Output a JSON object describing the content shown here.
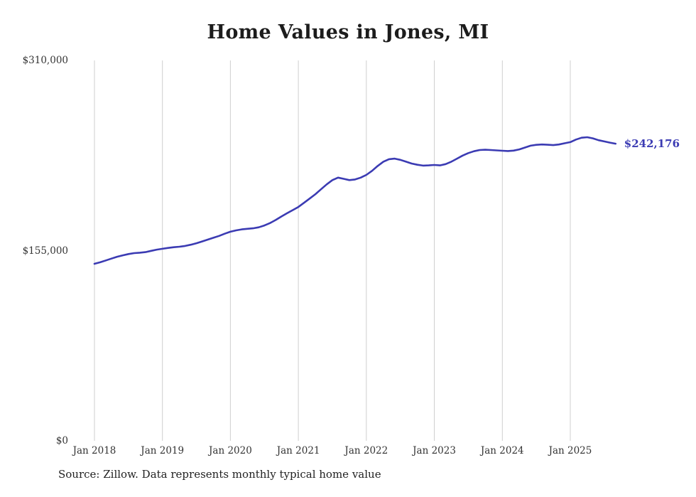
{
  "page": {
    "source_note": "Source: Zillow. Data represents monthly typical home value"
  },
  "chart_data": {
    "type": "line",
    "title": "Home Values in Jones, MI",
    "series_name": "Monthly typical home value (USD)",
    "unit": "USD",
    "grid": "vertical-only",
    "legend": "none",
    "ylim": [
      0,
      310000
    ],
    "line_color": "#3b3bb3",
    "grid_color": "#cfcfcf",
    "end_label": "$242,176",
    "latest_value": 242176,
    "y_ticks": [
      {
        "value": 0,
        "label": "$0"
      },
      {
        "value": 155000,
        "label": "$155,000"
      },
      {
        "value": 310000,
        "label": "$310,000"
      }
    ],
    "x_ticks": [
      {
        "index": 0,
        "label": "Jan 2018"
      },
      {
        "index": 12,
        "label": "Jan 2019"
      },
      {
        "index": 24,
        "label": "Jan 2020"
      },
      {
        "index": 36,
        "label": "Jan 2021"
      },
      {
        "index": 48,
        "label": "Jan 2022"
      },
      {
        "index": 60,
        "label": "Jan 2023"
      },
      {
        "index": 72,
        "label": "Jan 2024"
      },
      {
        "index": 84,
        "label": "Jan 2025"
      }
    ],
    "x": [
      "2018-01",
      "2018-02",
      "2018-03",
      "2018-04",
      "2018-05",
      "2018-06",
      "2018-07",
      "2018-08",
      "2018-09",
      "2018-10",
      "2018-11",
      "2018-12",
      "2019-01",
      "2019-02",
      "2019-03",
      "2019-04",
      "2019-05",
      "2019-06",
      "2019-07",
      "2019-08",
      "2019-09",
      "2019-10",
      "2019-11",
      "2019-12",
      "2020-01",
      "2020-02",
      "2020-03",
      "2020-04",
      "2020-05",
      "2020-06",
      "2020-07",
      "2020-08",
      "2020-09",
      "2020-10",
      "2020-11",
      "2020-12",
      "2021-01",
      "2021-02",
      "2021-03",
      "2021-04",
      "2021-05",
      "2021-06",
      "2021-07",
      "2021-08",
      "2021-09",
      "2021-10",
      "2021-11",
      "2021-12",
      "2022-01",
      "2022-02",
      "2022-03",
      "2022-04",
      "2022-05",
      "2022-06",
      "2022-07",
      "2022-08",
      "2022-09",
      "2022-10",
      "2022-11",
      "2022-12",
      "2023-01",
      "2023-02",
      "2023-03",
      "2023-04",
      "2023-05",
      "2023-06",
      "2023-07",
      "2023-08",
      "2023-09",
      "2023-10",
      "2023-11",
      "2023-12",
      "2024-01",
      "2024-02",
      "2024-03",
      "2024-04",
      "2024-05",
      "2024-06",
      "2024-07",
      "2024-08",
      "2024-09",
      "2024-10",
      "2024-11",
      "2024-12",
      "2025-01",
      "2025-02",
      "2025-03",
      "2025-04",
      "2025-05",
      "2025-06",
      "2025-07",
      "2025-08",
      "2025-09"
    ],
    "values": [
      144300,
      145500,
      147000,
      148500,
      150000,
      151200,
      152200,
      153000,
      153300,
      153800,
      154800,
      155800,
      156500,
      157200,
      157800,
      158200,
      158800,
      159800,
      161000,
      162500,
      164000,
      165500,
      167000,
      168800,
      170400,
      171500,
      172300,
      172800,
      173200,
      174000,
      175500,
      177500,
      180000,
      182800,
      185500,
      188000,
      190600,
      194000,
      197500,
      201000,
      205000,
      209000,
      212500,
      214500,
      213500,
      212500,
      213000,
      214500,
      216700,
      220000,
      224000,
      227500,
      229500,
      230000,
      229000,
      227500,
      226000,
      225000,
      224300,
      224500,
      224800,
      224500,
      225500,
      227500,
      230000,
      232500,
      234500,
      236000,
      237000,
      237200,
      237000,
      236700,
      236400,
      236200,
      236500,
      237500,
      239000,
      240500,
      241200,
      241500,
      241300,
      241000,
      241500,
      242500,
      243400,
      245500,
      247000,
      247400,
      246500,
      245000,
      244000,
      243000,
      242176
    ]
  }
}
